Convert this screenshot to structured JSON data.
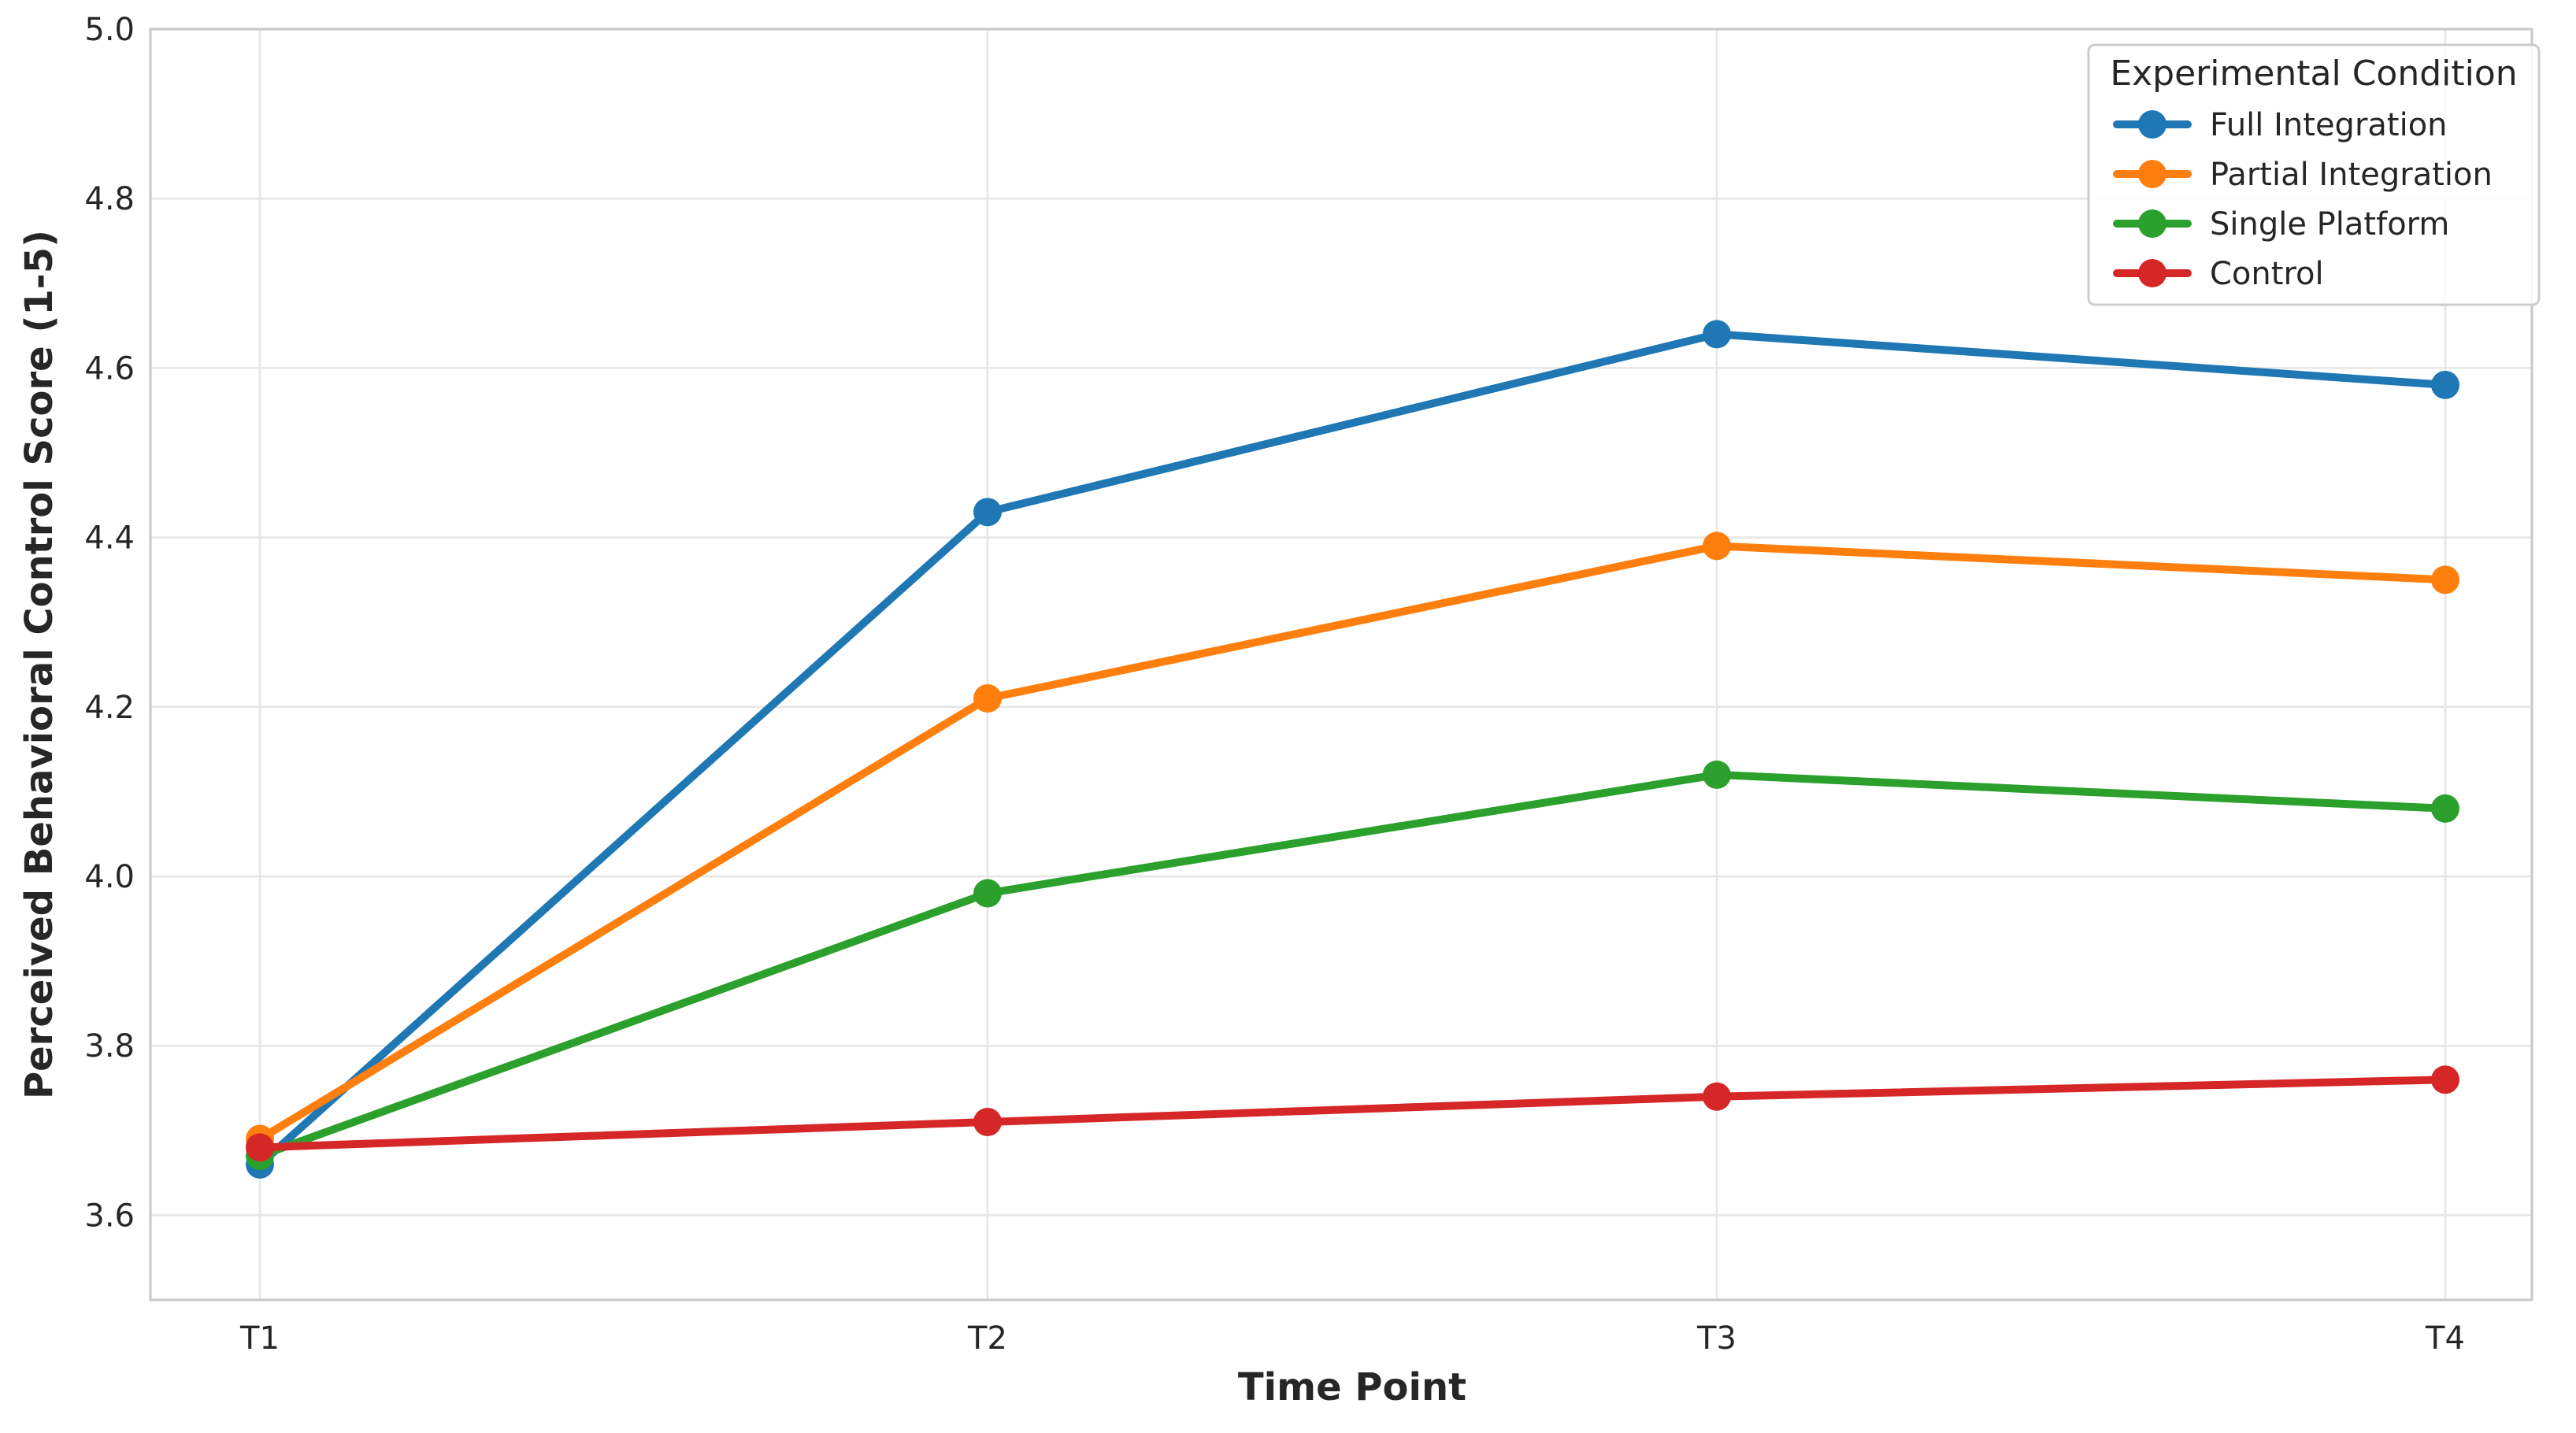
{
  "chart_data": {
    "type": "line",
    "xlabel": "Time Point",
    "ylabel": "Perceived Behavioral Control Score (1-5)",
    "categories": [
      "T1",
      "T2",
      "T3",
      "T4"
    ],
    "ylim": [
      3.5,
      5.0
    ],
    "yticks": [
      3.6,
      3.8,
      4.0,
      4.2,
      4.4,
      4.6,
      4.8,
      5.0
    ],
    "ytick_labels": [
      "3.6",
      "3.8",
      "4.0",
      "4.2",
      "4.4",
      "4.6",
      "4.8",
      "5.0"
    ],
    "grid": true,
    "legend": {
      "title": "Experimental Condition",
      "placement": "top-right"
    },
    "series": [
      {
        "name": "Full Integration",
        "color": "#1f77b4",
        "values": [
          3.66,
          4.43,
          4.64,
          4.58
        ]
      },
      {
        "name": "Partial Integration",
        "color": "#ff7f0e",
        "values": [
          3.69,
          4.21,
          4.39,
          4.35
        ]
      },
      {
        "name": "Single Platform",
        "color": "#2ca02c",
        "values": [
          3.67,
          3.98,
          4.12,
          4.08
        ]
      },
      {
        "name": "Control",
        "color": "#d62728",
        "values": [
          3.68,
          3.71,
          3.74,
          3.76
        ]
      }
    ]
  }
}
